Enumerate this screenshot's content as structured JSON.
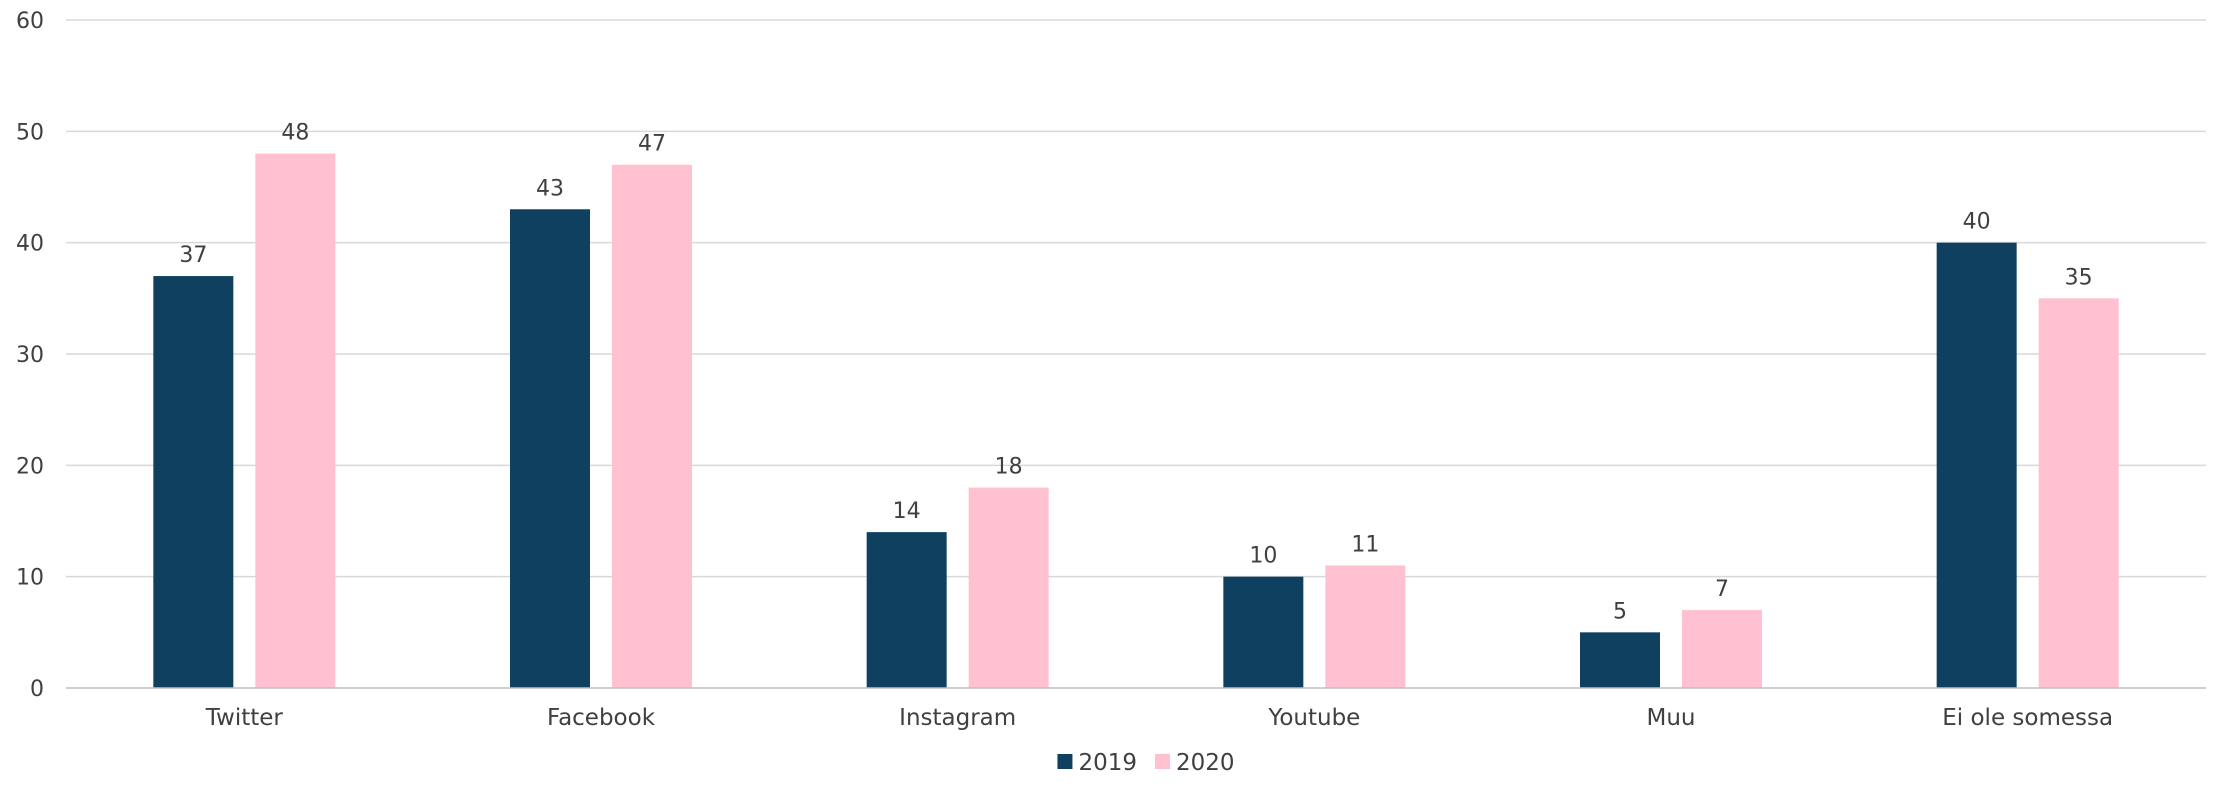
{
  "chart_data": {
    "type": "bar",
    "categories": [
      "Twitter",
      "Facebook",
      "Instagram",
      "Youtube",
      "Muu",
      "Ei ole somessa"
    ],
    "series": [
      {
        "name": "2019",
        "color": "#0f4060",
        "values": [
          37,
          43,
          14,
          10,
          5,
          40
        ]
      },
      {
        "name": "2020",
        "color": "#ffc0cf",
        "values": [
          48,
          47,
          18,
          11,
          7,
          35
        ]
      }
    ],
    "ylim": [
      0,
      60
    ],
    "yticks": [
      0,
      10,
      20,
      30,
      40,
      50,
      60
    ],
    "grid": true,
    "legend_position": "bottom-center",
    "data_labels": true,
    "title": "",
    "xlabel": "",
    "ylabel": ""
  }
}
